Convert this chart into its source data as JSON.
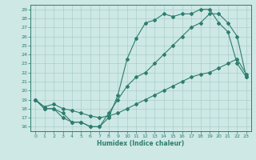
{
  "xlabel": "Humidex (Indice chaleur)",
  "bg_color": "#cde8e5",
  "line_color": "#2e7d6e",
  "grid_color": "#aacfcc",
  "xlim": [
    -0.5,
    23.5
  ],
  "ylim": [
    15.5,
    29.5
  ],
  "yticks": [
    16,
    17,
    18,
    19,
    20,
    21,
    22,
    23,
    24,
    25,
    26,
    27,
    28,
    29
  ],
  "xticks": [
    0,
    1,
    2,
    3,
    4,
    5,
    6,
    7,
    8,
    9,
    10,
    11,
    12,
    13,
    14,
    15,
    16,
    17,
    18,
    19,
    20,
    21,
    22,
    23
  ],
  "line1_x": [
    0,
    1,
    2,
    3,
    4,
    5,
    6,
    7,
    8,
    9,
    10,
    11,
    12,
    13,
    14,
    15,
    16,
    17,
    18,
    19,
    20,
    21,
    22,
    23
  ],
  "line1_y": [
    19.0,
    18.0,
    18.0,
    17.5,
    16.5,
    16.5,
    16.0,
    16.0,
    17.0,
    19.5,
    23.5,
    25.8,
    27.5,
    27.8,
    28.5,
    28.2,
    28.5,
    28.5,
    29.0,
    29.0,
    27.5,
    26.5,
    23.0,
    21.5
  ],
  "line2_x": [
    0,
    1,
    2,
    3,
    4,
    5,
    6,
    7,
    8,
    9,
    10,
    11,
    12,
    13,
    14,
    15,
    16,
    17,
    18,
    19,
    20,
    21,
    22,
    23
  ],
  "line2_y": [
    19.0,
    18.0,
    18.0,
    17.0,
    16.5,
    16.5,
    16.0,
    16.0,
    17.5,
    19.0,
    20.5,
    21.5,
    22.0,
    23.0,
    24.0,
    25.0,
    26.0,
    27.0,
    27.5,
    28.5,
    28.5,
    27.5,
    26.0,
    21.5
  ],
  "line3_x": [
    0,
    1,
    2,
    3,
    4,
    5,
    6,
    7,
    8,
    9,
    10,
    11,
    12,
    13,
    14,
    15,
    16,
    17,
    18,
    19,
    20,
    21,
    22,
    23
  ],
  "line3_y": [
    19.0,
    18.2,
    18.5,
    18.0,
    17.8,
    17.5,
    17.2,
    17.0,
    17.2,
    17.5,
    18.0,
    18.5,
    19.0,
    19.5,
    20.0,
    20.5,
    21.0,
    21.5,
    21.8,
    22.0,
    22.5,
    23.0,
    23.5,
    21.8
  ]
}
